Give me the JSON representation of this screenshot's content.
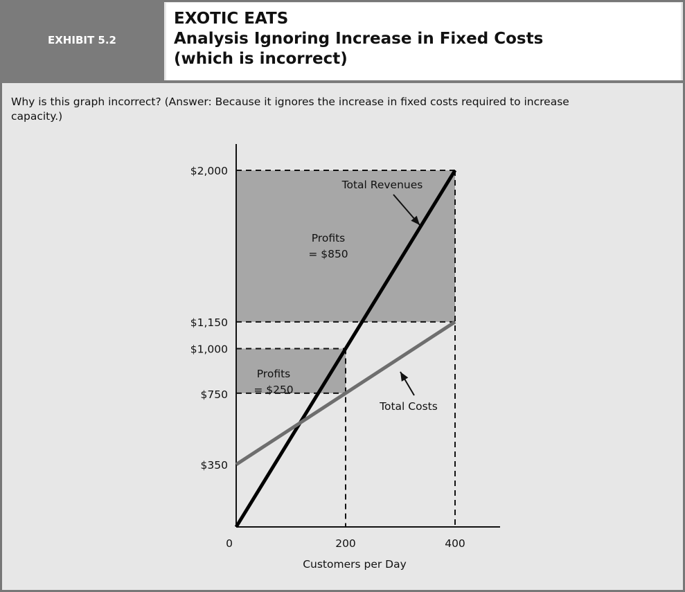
{
  "exhibit": {
    "label": "EXHIBIT 5.2"
  },
  "header": {
    "title_line1": "EXOTIC EATS",
    "title_line2": "Analysis Ignoring Increase in Fixed Costs",
    "title_line3": "(which is incorrect)"
  },
  "question": "Why is this graph incorrect? (Answer: Because it ignores the increase in fixed costs required to increase capacity.)",
  "colors": {
    "frame": "#7b7b7b",
    "panel": "#e7e7e7",
    "profit_area": "#a7a7a7",
    "revenue_line": "#000000",
    "cost_line": "#6e6e6e"
  },
  "chart_data": {
    "type": "line",
    "title": "",
    "xlabel": "Customers per Day",
    "ylabel": "",
    "x_ticks": [
      0,
      200,
      400
    ],
    "y_ticks": [
      {
        "value": 350,
        "label": "$350"
      },
      {
        "value": 750,
        "label": "$750"
      },
      {
        "value": 1000,
        "label": "$1,000"
      },
      {
        "value": 1150,
        "label": "$1,150"
      },
      {
        "value": 2000,
        "label": "$2,000"
      }
    ],
    "series": [
      {
        "name": "Total Revenues",
        "x": [
          0,
          400
        ],
        "y": [
          0,
          2000
        ]
      },
      {
        "name": "Total Costs",
        "x": [
          0,
          400
        ],
        "y": [
          350,
          1150
        ]
      }
    ],
    "profit_regions": [
      {
        "label_line1": "Profits",
        "label_line2": "= $850",
        "x_to": 400,
        "y_from": 1150,
        "y_to": 2000
      },
      {
        "label_line1": "Profits",
        "label_line2": "= $250",
        "x_to": 200,
        "y_from": 750,
        "y_to": 1000
      }
    ],
    "grid": false,
    "legend": "none"
  }
}
